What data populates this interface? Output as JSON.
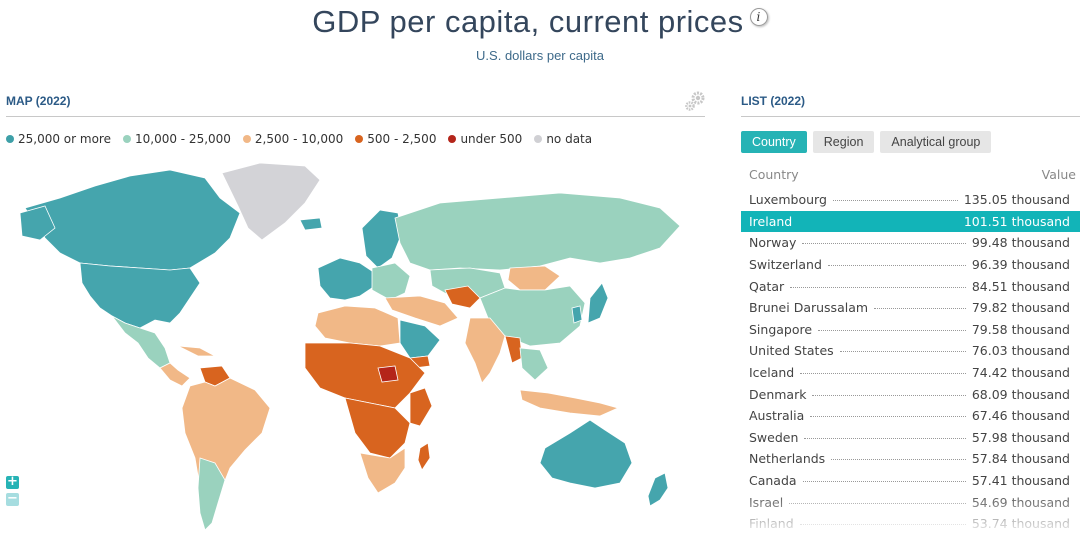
{
  "header": {
    "title": "GDP per capita, current prices",
    "info_glyph": "i",
    "subtitle": "U.S. dollars per capita"
  },
  "map_section": {
    "title": "MAP (2022)",
    "legend": [
      {
        "label": "25,000 or more",
        "color": "#3ea0a8"
      },
      {
        "label": "10,000 - 25,000",
        "color": "#9ad2be"
      },
      {
        "label": "2,500 - 10,000",
        "color": "#f1b887"
      },
      {
        "label": "500 - 2,500",
        "color": "#d8641f"
      },
      {
        "label": "under 500",
        "color": "#b4251a"
      },
      {
        "label": "no data",
        "color": "#d0d0d4"
      }
    ],
    "zoom_in": "+",
    "zoom_out": "−"
  },
  "list_section": {
    "title": "LIST (2022)",
    "tabs": [
      "Country",
      "Region",
      "Analytical group"
    ],
    "active_tab": "Country",
    "col_country": "Country",
    "col_value": "Value",
    "selected": "Ireland",
    "rows": [
      {
        "country": "Luxembourg",
        "value": "135.05 thousand"
      },
      {
        "country": "Ireland",
        "value": "101.51 thousand"
      },
      {
        "country": "Norway",
        "value": "99.48 thousand"
      },
      {
        "country": "Switzerland",
        "value": "96.39 thousand"
      },
      {
        "country": "Qatar",
        "value": "84.51 thousand"
      },
      {
        "country": "Brunei Darussalam",
        "value": "79.82 thousand"
      },
      {
        "country": "Singapore",
        "value": "79.58 thousand"
      },
      {
        "country": "United States",
        "value": "76.03 thousand"
      },
      {
        "country": "Iceland",
        "value": "74.42 thousand"
      },
      {
        "country": "Denmark",
        "value": "68.09 thousand"
      },
      {
        "country": "Australia",
        "value": "67.46 thousand"
      },
      {
        "country": "Sweden",
        "value": "57.98 thousand"
      },
      {
        "country": "Netherlands",
        "value": "57.84 thousand"
      },
      {
        "country": "Canada",
        "value": "57.41 thousand"
      },
      {
        "country": "Israel",
        "value": "54.69 thousand"
      },
      {
        "country": "Finland",
        "value": "53.74 thousand"
      }
    ]
  }
}
